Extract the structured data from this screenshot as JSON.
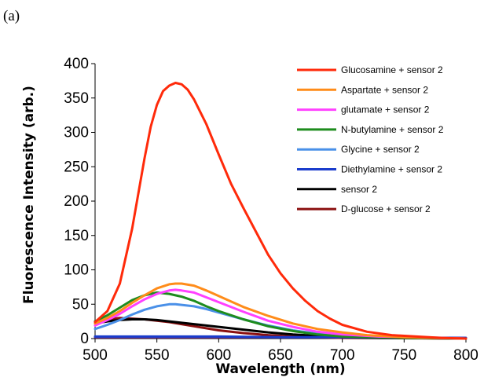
{
  "panel_label": "(a)",
  "chart_data": {
    "type": "line",
    "title": "",
    "xlabel": "Wavelength (nm)",
    "ylabel": "Fluorescence Intensity (arb.)",
    "xlim": [
      500,
      800
    ],
    "ylim": [
      0,
      400
    ],
    "xticks": [
      500,
      550,
      600,
      650,
      700,
      750,
      800
    ],
    "yticks": [
      0,
      50,
      100,
      150,
      200,
      250,
      300,
      350,
      400
    ],
    "grid": false,
    "legend_position": "top-right",
    "series": [
      {
        "name": "Glucosamine + sensor 2",
        "color": "#ff2a0a",
        "x": [
          500,
          510,
          520,
          530,
          540,
          545,
          550,
          555,
          560,
          565,
          570,
          575,
          580,
          590,
          600,
          610,
          620,
          630,
          640,
          650,
          660,
          670,
          680,
          690,
          700,
          720,
          740,
          760,
          780,
          800
        ],
        "y": [
          24,
          40,
          80,
          160,
          262,
          308,
          340,
          360,
          368,
          372,
          370,
          362,
          348,
          312,
          268,
          225,
          190,
          156,
          122,
          95,
          73,
          55,
          40,
          29,
          20,
          10,
          5,
          3,
          1,
          0
        ]
      },
      {
        "name": "Aspartate + sensor 2",
        "color": "#ff8c1a",
        "x": [
          500,
          510,
          520,
          530,
          540,
          550,
          560,
          565,
          570,
          580,
          590,
          600,
          620,
          640,
          660,
          680,
          700,
          720,
          750,
          800
        ],
        "y": [
          22,
          30,
          40,
          52,
          63,
          73,
          79,
          80,
          80,
          77,
          70,
          62,
          46,
          33,
          22,
          14,
          9,
          5,
          2,
          0
        ]
      },
      {
        "name": "glutamate + sensor 2",
        "color": "#ff40ff",
        "x": [
          500,
          510,
          520,
          530,
          540,
          550,
          560,
          565,
          570,
          580,
          590,
          600,
          620,
          640,
          660,
          680,
          700,
          730,
          800
        ],
        "y": [
          19,
          27,
          36,
          47,
          57,
          65,
          70,
          71,
          70,
          67,
          60,
          53,
          39,
          26,
          17,
          10,
          6,
          3,
          0
        ]
      },
      {
        "name": "N-butylamine + sensor 2",
        "color": "#1e8c1e",
        "x": [
          500,
          510,
          520,
          530,
          540,
          550,
          555,
          560,
          570,
          580,
          590,
          600,
          620,
          640,
          660,
          680,
          700,
          750,
          800
        ],
        "y": [
          25,
          34,
          45,
          56,
          63,
          67,
          66,
          65,
          61,
          55,
          47,
          40,
          28,
          18,
          11,
          6,
          3,
          1,
          0
        ]
      },
      {
        "name": "Glycine + sensor 2",
        "color": "#4a90e8",
        "x": [
          500,
          510,
          520,
          530,
          540,
          550,
          560,
          565,
          570,
          580,
          590,
          600,
          620,
          640,
          660,
          680,
          700,
          730,
          800
        ],
        "y": [
          14,
          20,
          27,
          35,
          42,
          47,
          50,
          50,
          49,
          47,
          43,
          38,
          28,
          19,
          12,
          7,
          4,
          2,
          0
        ]
      },
      {
        "name": "Diethylamine + sensor 2",
        "color": "#1a3ccc",
        "x": [
          500,
          525,
          550,
          600,
          650,
          700,
          750,
          800
        ],
        "y": [
          3,
          3,
          3,
          3,
          2,
          2,
          1,
          1
        ]
      },
      {
        "name": "sensor 2",
        "color": "#000000",
        "x": [
          500,
          510,
          520,
          530,
          540,
          550,
          560,
          570,
          580,
          590,
          600,
          620,
          640,
          660,
          680,
          700,
          730,
          800
        ],
        "y": [
          22,
          25,
          27,
          28,
          28,
          27,
          25,
          23,
          21,
          19,
          17,
          13,
          9,
          6,
          4,
          2,
          1,
          0
        ]
      },
      {
        "name": "D-glucose + sensor 2",
        "color": "#8b1010",
        "x": [
          500,
          510,
          520,
          530,
          540,
          550,
          560,
          570,
          580,
          590,
          600,
          620,
          640,
          660,
          680,
          700,
          800
        ],
        "y": [
          25,
          28,
          30,
          29,
          28,
          26,
          24,
          21,
          18,
          15,
          12,
          8,
          5,
          3,
          2,
          1,
          0
        ]
      },
      {
        "name": "",
        "color": "#7a2c8c",
        "x": [
          500,
          600,
          700,
          800
        ],
        "y": [
          2,
          2,
          2,
          1
        ]
      }
    ]
  }
}
